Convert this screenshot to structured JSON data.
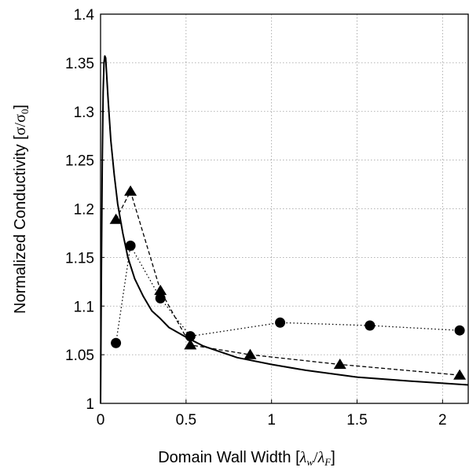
{
  "chart_data": {
    "type": "line",
    "xlabel": {
      "prefix": "Domain Wall Width [",
      "num_sym": "λ",
      "num_sub": "w",
      "slash": "/",
      "den_sym": "λ",
      "den_sub": "F",
      "suffix": "]"
    },
    "ylabel": {
      "prefix": "Normalized Conductivity [",
      "num": "σ",
      "slash": "/",
      "den": "σ",
      "den_sub": "0",
      "suffix": "]"
    },
    "xlim": [
      0,
      2.15
    ],
    "ylim": [
      1,
      1.4
    ],
    "x_ticks": [
      0,
      0.5,
      1,
      1.5,
      2
    ],
    "x_tick_labels": [
      "0",
      "0.5",
      "1",
      "1.5",
      "2"
    ],
    "y_ticks": [
      1,
      1.05,
      1.1,
      1.15,
      1.2,
      1.25,
      1.3,
      1.35,
      1.4
    ],
    "y_tick_labels": [
      "1",
      "1.05",
      "1.1",
      "1.15",
      "1.2",
      "1.25",
      "1.3",
      "1.35",
      "1.4"
    ],
    "grid": true,
    "series": [
      {
        "style": "solid line",
        "color": "#000000",
        "x": [
          0.0,
          0.005,
          0.01,
          0.015,
          0.02,
          0.025,
          0.03,
          0.035,
          0.045,
          0.06,
          0.08,
          0.1,
          0.13,
          0.16,
          0.2,
          0.25,
          0.3,
          0.35,
          0.4,
          0.5,
          0.6,
          0.7,
          0.8,
          1.0,
          1.2,
          1.5,
          1.8,
          2.15
        ],
        "y": [
          1.0,
          1.14,
          1.25,
          1.32,
          1.35,
          1.357,
          1.355,
          1.34,
          1.31,
          1.27,
          1.235,
          1.205,
          1.175,
          1.15,
          1.128,
          1.11,
          1.095,
          1.087,
          1.078,
          1.068,
          1.059,
          1.053,
          1.047,
          1.04,
          1.034,
          1.027,
          1.023,
          1.019
        ]
      },
      {
        "style": "dashed line with triangle markers",
        "marker": "triangle",
        "color": "#000000",
        "x": [
          0.09,
          0.175,
          0.35,
          0.525,
          0.875,
          1.4,
          2.1
        ],
        "y": [
          1.189,
          1.218,
          1.116,
          1.06,
          1.05,
          1.04,
          1.029
        ]
      },
      {
        "style": "dotted line with circle markers",
        "marker": "circle",
        "color": "#000000",
        "x": [
          0.09,
          0.175,
          0.35,
          0.525,
          1.05,
          1.575,
          2.1
        ],
        "y": [
          1.062,
          1.162,
          1.108,
          1.069,
          1.083,
          1.08,
          1.075
        ]
      }
    ]
  }
}
